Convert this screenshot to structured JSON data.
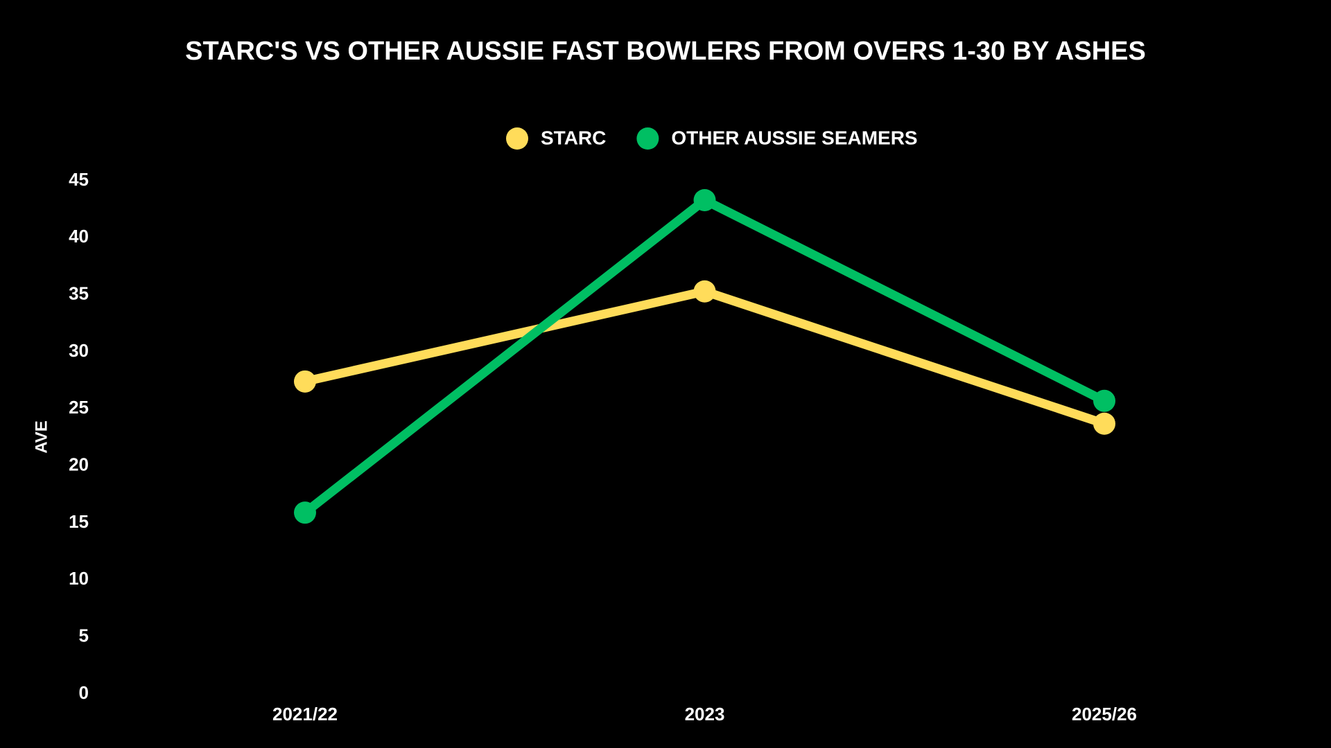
{
  "chart_data": {
    "type": "line",
    "title": "STARC'S VS OTHER AUSSIE FAST BOWLERS FROM OVERS 1-30 BY ASHES",
    "y_label": "AVE",
    "categories": [
      "2021/22",
      "2023",
      "2025/26"
    ],
    "series": [
      {
        "name": "STARC",
        "color": "#ffdc5a",
        "values": [
          27.4,
          35.3,
          23.7
        ]
      },
      {
        "name": "OTHER AUSSIE SEAMERS",
        "color": "#00bf63",
        "values": [
          15.9,
          43.3,
          25.7
        ]
      }
    ],
    "ylim": [
      0,
      45
    ],
    "yticks": [
      0,
      5,
      10,
      15,
      20,
      25,
      30,
      35,
      40,
      45
    ],
    "grid": false
  }
}
